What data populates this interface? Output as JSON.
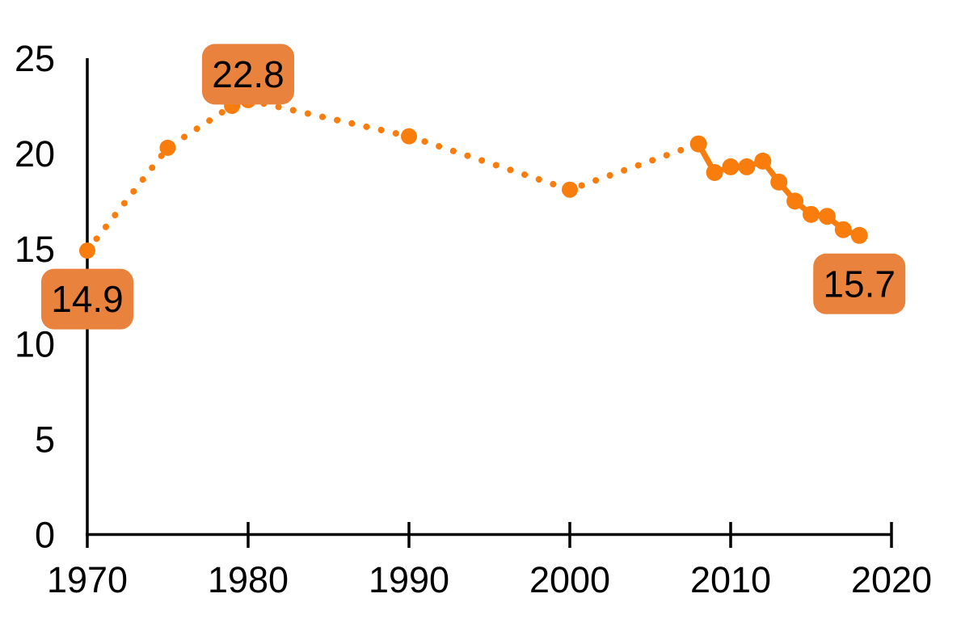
{
  "figure": {
    "description": "Dotted-to-solid orange line chart, no title, values per year 1970-2018"
  },
  "colors": {
    "accent_line": "#F87D0C",
    "callout_fill": "#E8823C",
    "axis": "#000000",
    "text": "#000000",
    "background": "#ffffff"
  },
  "chart_data": {
    "type": "line",
    "title": "",
    "xlabel": "",
    "ylabel": "",
    "xlim": [
      1970,
      2020
    ],
    "ylim": [
      0,
      25
    ],
    "grid": false,
    "legend": false,
    "x_ticks": [
      {
        "year": 1970,
        "label": "1970"
      },
      {
        "year": 1980,
        "label": "1980"
      },
      {
        "year": 1990,
        "label": "1990"
      },
      {
        "year": 2000,
        "label": "2000"
      },
      {
        "year": 2010,
        "label": "2010"
      },
      {
        "year": 2020,
        "label": "2020"
      }
    ],
    "y_ticks": [
      {
        "value": 0,
        "label": "0"
      },
      {
        "value": 5,
        "label": "5"
      },
      {
        "value": 10,
        "label": "10"
      },
      {
        "value": 15,
        "label": "15"
      },
      {
        "value": 20,
        "label": "20"
      },
      {
        "value": 25,
        "label": "25"
      }
    ],
    "series": [
      {
        "name": "1970-2008 sparse observations",
        "style": "dotted",
        "points": [
          [
            1970,
            14.9
          ],
          [
            1975,
            20.3
          ],
          [
            1979,
            22.5
          ],
          [
            1980,
            22.8
          ],
          [
            1990,
            20.9
          ],
          [
            2000,
            18.1
          ],
          [
            2008,
            20.5
          ]
        ]
      },
      {
        "name": "2008-2018 annual observations",
        "style": "solid",
        "points": [
          [
            2008,
            20.5
          ],
          [
            2009,
            19.0
          ],
          [
            2010,
            19.3
          ],
          [
            2011,
            19.3
          ],
          [
            2012,
            19.6
          ],
          [
            2013,
            18.5
          ],
          [
            2014,
            17.5
          ],
          [
            2015,
            16.8
          ],
          [
            2016,
            16.7
          ],
          [
            2017,
            16.0
          ],
          [
            2018,
            15.7
          ]
        ]
      }
    ],
    "annotations": [
      {
        "text": "14.9",
        "year": 1970,
        "value": 14.9,
        "placement": "below"
      },
      {
        "text": "22.8",
        "year": 1980,
        "value": 22.8,
        "placement": "above"
      },
      {
        "text": "15.7",
        "year": 2018,
        "value": 15.7,
        "placement": "below"
      }
    ]
  }
}
